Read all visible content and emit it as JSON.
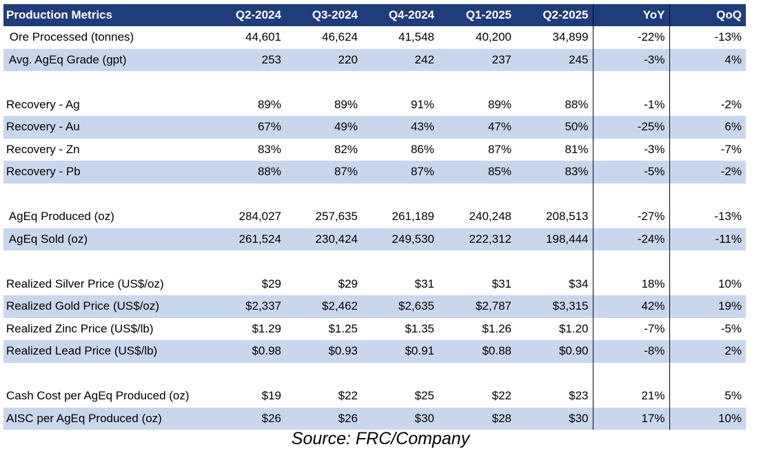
{
  "table": {
    "headers": [
      "Production Metrics",
      "Q2-2024",
      "Q3-2024",
      "Q4-2024",
      "Q1-2025",
      "Q2-2025",
      "YoY",
      "QoQ"
    ],
    "rows": [
      {
        "label": " Ore Processed (tonnes)",
        "values": [
          "44,601",
          "46,624",
          "41,548",
          "40,200",
          "34,899",
          "-22%",
          "-13%"
        ]
      },
      {
        "label": " Avg. AgEq Grade (gpt)",
        "values": [
          "253",
          "220",
          "242",
          "237",
          "245",
          "-3%",
          "4%"
        ]
      },
      {
        "blank": true
      },
      {
        "label": "Recovery - Ag",
        "values": [
          "89%",
          "89%",
          "91%",
          "89%",
          "88%",
          "-1%",
          "-2%"
        ]
      },
      {
        "label": "Recovery - Au",
        "values": [
          "67%",
          "49%",
          "43%",
          "47%",
          "50%",
          "-25%",
          "6%"
        ]
      },
      {
        "label": "Recovery - Zn",
        "values": [
          "83%",
          "82%",
          "86%",
          "87%",
          "81%",
          "-3%",
          "-7%"
        ]
      },
      {
        "label": "Recovery - Pb",
        "values": [
          "88%",
          "87%",
          "87%",
          "85%",
          "83%",
          "-5%",
          "-2%"
        ]
      },
      {
        "blank": true
      },
      {
        "label": " AgEq Produced (oz)",
        "values": [
          "284,027",
          "257,635",
          "261,189",
          "240,248",
          "208,513",
          "-27%",
          "-13%"
        ]
      },
      {
        "label": " AgEq Sold (oz)",
        "values": [
          "261,524",
          "230,424",
          "249,530",
          "222,312",
          "198,444",
          "-24%",
          "-11%"
        ]
      },
      {
        "blank": true
      },
      {
        "label": "Realized Silver Price (US$/oz)",
        "values": [
          "$29",
          "$29",
          "$31",
          "$31",
          "$34",
          "18%",
          "10%"
        ]
      },
      {
        "label": "Realized Gold Price (US$/oz)",
        "values": [
          "$2,337",
          "$2,462",
          "$2,635",
          "$2,787",
          "$3,315",
          "42%",
          "19%"
        ]
      },
      {
        "label": "Realized Zinc Price (US$/lb)",
        "values": [
          "$1.29",
          "$1.25",
          "$1.35",
          "$1.26",
          "$1.20",
          "-7%",
          "-5%"
        ]
      },
      {
        "label": "Realized Lead Price (US$/lb)",
        "values": [
          "$0.98",
          "$0.93",
          "$0.91",
          "$0.88",
          "$0.90",
          "-8%",
          "2%"
        ]
      },
      {
        "blank": true
      },
      {
        "label": "Cash Cost per AgEq Produced (oz)",
        "values": [
          "$19",
          "$22",
          "$25",
          "$22",
          "$23",
          "21%",
          "5%"
        ]
      },
      {
        "label": "AISC per AgEq Produced (oz)",
        "values": [
          "$26",
          "$26",
          "$30",
          "$28",
          "$30",
          "17%",
          "10%"
        ]
      }
    ]
  },
  "source": "Source: FRC/Company",
  "colors": {
    "header_bg": "#1f3d7a",
    "header_text": "#ffffff",
    "shade": "#c9d7ee"
  }
}
